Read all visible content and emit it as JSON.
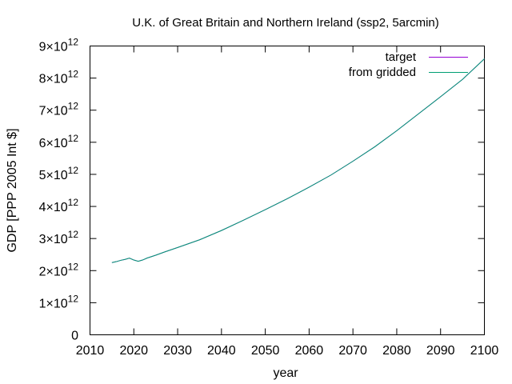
{
  "chart_data": {
    "type": "line",
    "title": "U.K. of Great Britain and Northern Ireland (ssp2, 5arcmin)",
    "xlabel": "year",
    "ylabel": "GDP [PPP 2005 Int $]",
    "xlim": [
      2010,
      2100
    ],
    "ylim": [
      0,
      9000000000000.0
    ],
    "x_ticks": [
      "2010",
      "2020",
      "2030",
      "2040",
      "2050",
      "2060",
      "2070",
      "2080",
      "2090",
      "2100"
    ],
    "y_ticks": [
      {
        "base": "0",
        "exp": ""
      },
      {
        "base": "1×10",
        "exp": "12"
      },
      {
        "base": "2×10",
        "exp": "12"
      },
      {
        "base": "3×10",
        "exp": "12"
      },
      {
        "base": "4×10",
        "exp": "12"
      },
      {
        "base": "5×10",
        "exp": "12"
      },
      {
        "base": "6×10",
        "exp": "12"
      },
      {
        "base": "7×10",
        "exp": "12"
      },
      {
        "base": "8×10",
        "exp": "12"
      },
      {
        "base": "9×10",
        "exp": "12"
      }
    ],
    "grid": false,
    "legend_position": "top-right",
    "series": [
      {
        "name": "target",
        "color": "#9400d3",
        "x": [
          2015,
          2016,
          2017,
          2018,
          2019,
          2020,
          2021,
          2022,
          2023,
          2025,
          2027,
          2030,
          2035,
          2040,
          2045,
          2050,
          2055,
          2060,
          2065,
          2070,
          2075,
          2080,
          2085,
          2090,
          2095,
          2100
        ],
        "y": [
          2250000000000.0,
          2280000000000.0,
          2320000000000.0,
          2350000000000.0,
          2390000000000.0,
          2330000000000.0,
          2290000000000.0,
          2330000000000.0,
          2390000000000.0,
          2480000000000.0,
          2580000000000.0,
          2720000000000.0,
          2960000000000.0,
          3250000000000.0,
          3570000000000.0,
          3900000000000.0,
          4240000000000.0,
          4600000000000.0,
          4980000000000.0,
          5410000000000.0,
          5860000000000.0,
          6360000000000.0,
          6890000000000.0,
          7420000000000.0,
          7960000000000.0,
          8600000000000.0
        ]
      },
      {
        "name": "from gridded",
        "color": "#009e73",
        "x": [
          2015,
          2016,
          2017,
          2018,
          2019,
          2020,
          2021,
          2022,
          2023,
          2025,
          2027,
          2030,
          2035,
          2040,
          2045,
          2050,
          2055,
          2060,
          2065,
          2070,
          2075,
          2080,
          2085,
          2090,
          2095,
          2100
        ],
        "y": [
          2250000000000.0,
          2280000000000.0,
          2320000000000.0,
          2350000000000.0,
          2390000000000.0,
          2330000000000.0,
          2290000000000.0,
          2330000000000.0,
          2390000000000.0,
          2480000000000.0,
          2580000000000.0,
          2720000000000.0,
          2960000000000.0,
          3250000000000.0,
          3570000000000.0,
          3900000000000.0,
          4240000000000.0,
          4600000000000.0,
          4980000000000.0,
          5410000000000.0,
          5860000000000.0,
          6360000000000.0,
          6890000000000.0,
          7420000000000.0,
          7960000000000.0,
          8600000000000.0
        ]
      }
    ]
  }
}
